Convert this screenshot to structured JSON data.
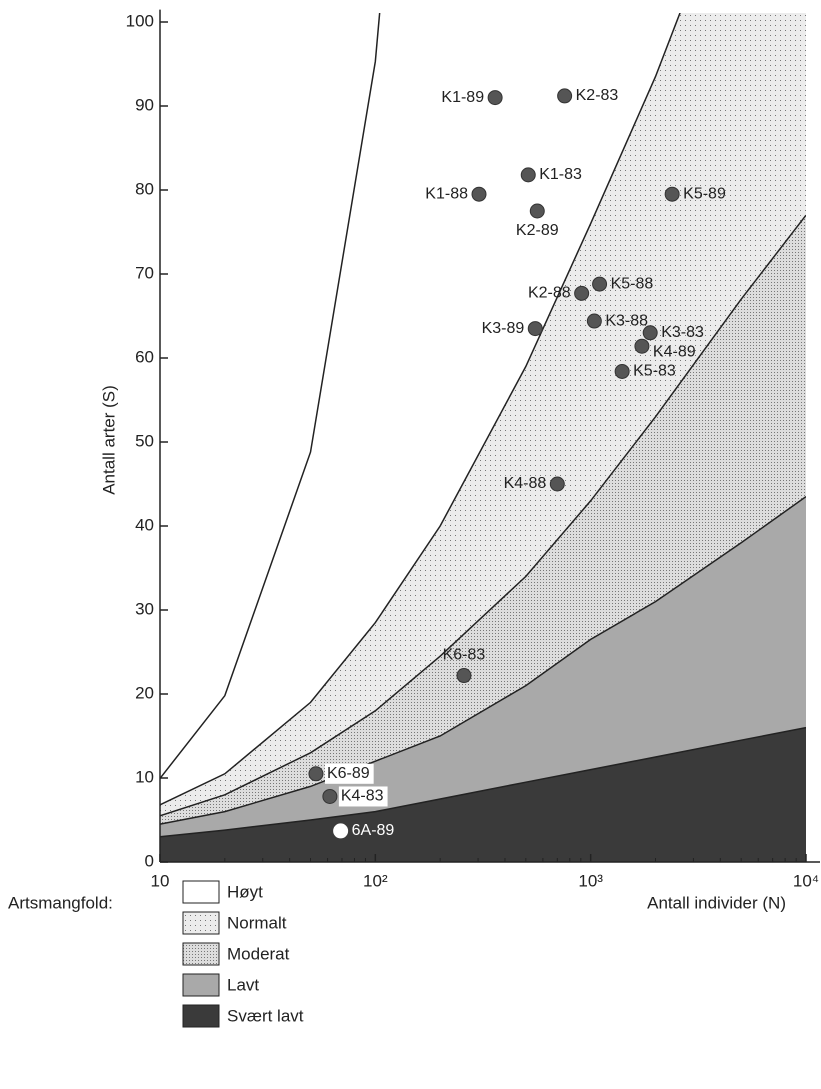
{
  "chart_data": {
    "type": "scatter",
    "x_label": "Antall individer (N)",
    "y_label": "Antall arter (S)",
    "log_x": true,
    "xlim": [
      10,
      10000
    ],
    "ylim": [
      0,
      101
    ],
    "xticks": [
      10,
      {
        "value": 100,
        "label": "10²"
      },
      {
        "value": 1000,
        "label": "10³"
      },
      {
        "value": 10000,
        "label": "10⁴"
      }
    ],
    "yticks": [
      0,
      10,
      20,
      30,
      40,
      50,
      60,
      70,
      80,
      90,
      100
    ],
    "legend_title": "Artsmangfold:",
    "region_x": [
      10,
      20,
      50,
      100,
      200,
      500,
      1000,
      2000,
      5000,
      10000
    ],
    "regions": [
      {
        "name": "Høyt",
        "color": "#ffffff",
        "upper": [
          9.95,
          19.8,
          48.8,
          95.3,
          182,
          null,
          null,
          null,
          null,
          null
        ]
      },
      {
        "name": "Normalt",
        "color": "#ececec",
        "upper": [
          6.8,
          10.5,
          19,
          28.5,
          40,
          59,
          76,
          93.5,
          120,
          140
        ]
      },
      {
        "name": "Moderat",
        "color": "#dddddd",
        "upper": [
          5.5,
          8,
          13,
          18,
          24.5,
          34,
          43,
          53,
          67,
          77
        ]
      },
      {
        "name": "Lavt",
        "color": "#a9a9a9",
        "upper": [
          4.5,
          6,
          9,
          12,
          15,
          21,
          26.5,
          31,
          38,
          43.5
        ]
      },
      {
        "name": "Svært lavt",
        "color": "#3a3a3a",
        "upper": [
          3,
          3.8,
          5,
          6,
          7.5,
          9.5,
          11,
          12.5,
          14.5,
          16
        ]
      }
    ],
    "points": {
      "labels": [
        "K1-89",
        "K2-83",
        "K1-83",
        "K1-88",
        "K2-89",
        "K5-89",
        "K5-88",
        "K2-88",
        "K3-89",
        "K3-88",
        "K3-83",
        "K4-89",
        "K5-83",
        "K4-88",
        "K6-83",
        "K6-89",
        "K4-83",
        "6A-89"
      ],
      "x": [
        360,
        757,
        513,
        303,
        565,
        2390,
        1100,
        908,
        553,
        1040,
        1890,
        1730,
        1400,
        700,
        258,
        53,
        61.5,
        69
      ],
      "y": [
        91,
        91.2,
        81.8,
        79.5,
        77.5,
        79.5,
        68.8,
        67.7,
        63.5,
        64.4,
        63,
        61.4,
        58.4,
        45,
        22.2,
        10.5,
        7.8,
        3.7
      ],
      "colors": [
        "#555555",
        "#555555",
        "#555555",
        "#555555",
        "#555555",
        "#555555",
        "#555555",
        "#555555",
        "#555555",
        "#555555",
        "#555555",
        "#555555",
        "#555555",
        "#555555",
        "#555555",
        "#555555",
        "#555555",
        "#ffffff"
      ]
    }
  }
}
